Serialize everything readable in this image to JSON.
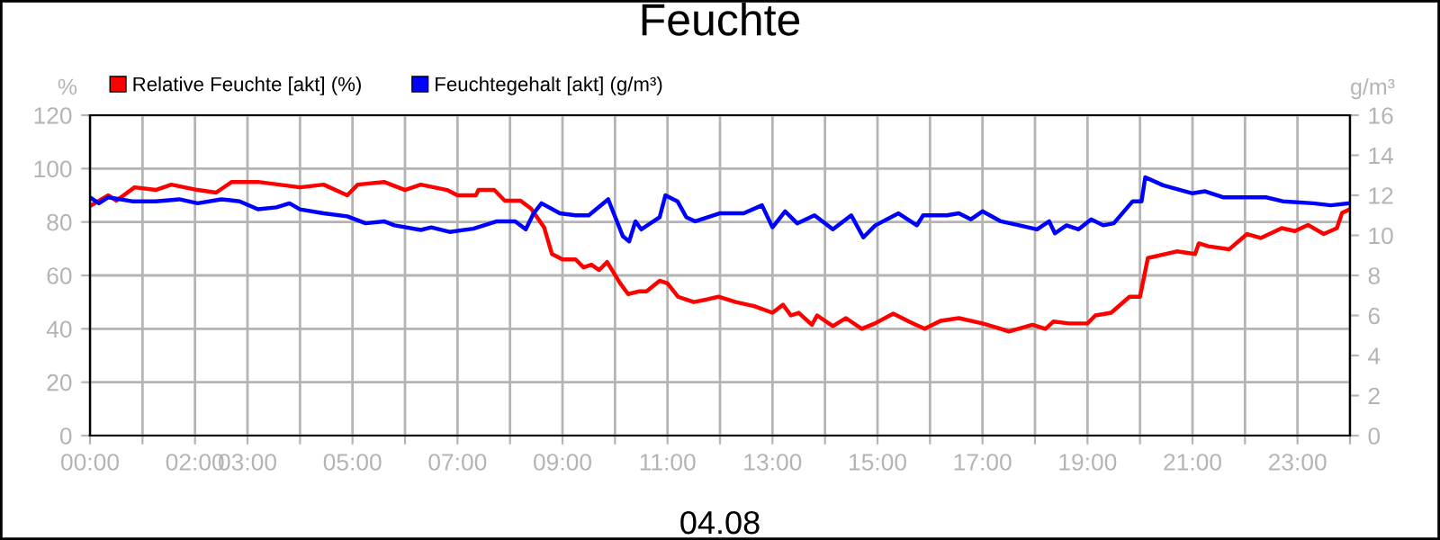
{
  "chart_data": {
    "type": "line",
    "title": "Feuchte",
    "xlabel": "04.08",
    "ylabel": "%",
    "y2label": "g/m³",
    "xlim": [
      0,
      24
    ],
    "xticks": [
      {
        "value": 0,
        "label": "00:00"
      },
      {
        "value": 1,
        "label": null
      },
      {
        "value": 2,
        "label": "02:00"
      },
      {
        "value": 3,
        "label": "03:00"
      },
      {
        "value": 4,
        "label": null
      },
      {
        "value": 5,
        "label": "05:00"
      },
      {
        "value": 6,
        "label": null
      },
      {
        "value": 7,
        "label": "07:00"
      },
      {
        "value": 8,
        "label": null
      },
      {
        "value": 9,
        "label": "09:00"
      },
      {
        "value": 10,
        "label": null
      },
      {
        "value": 11,
        "label": "11:00"
      },
      {
        "value": 12,
        "label": null
      },
      {
        "value": 13,
        "label": "13:00"
      },
      {
        "value": 14,
        "label": null
      },
      {
        "value": 15,
        "label": "15:00"
      },
      {
        "value": 16,
        "label": null
      },
      {
        "value": 17,
        "label": "17:00"
      },
      {
        "value": 18,
        "label": null
      },
      {
        "value": 19,
        "label": "19:00"
      },
      {
        "value": 20,
        "label": null
      },
      {
        "value": 21,
        "label": "21:00"
      },
      {
        "value": 22,
        "label": null
      },
      {
        "value": 23,
        "label": "23:00"
      },
      {
        "value": 24,
        "label": null
      }
    ],
    "ylim": [
      0,
      120
    ],
    "yticks": [
      0,
      20,
      40,
      60,
      80,
      100,
      120
    ],
    "y2lim": [
      0,
      16
    ],
    "y2ticks": [
      0,
      2,
      4,
      6,
      8,
      10,
      12,
      14,
      16
    ],
    "grid": true,
    "legend": "top left",
    "marker": "none",
    "line_style": "solid",
    "series": [
      {
        "name": "Relative Feuchte [akt] (%)",
        "color": "#ff0000",
        "x": [
          0,
          0.35,
          0.5,
          0.85,
          1.25,
          1.55,
          2.05,
          2.4,
          2.7,
          3.2,
          3.6,
          4.0,
          4.45,
          4.9,
          5.1,
          5.6,
          6.0,
          6.3,
          6.8,
          7.0,
          7.35,
          7.4,
          7.7,
          7.9,
          8.2,
          8.4,
          8.65,
          8.8,
          9.0,
          9.25,
          9.4,
          9.55,
          9.7,
          9.85,
          10.1,
          10.25,
          10.45,
          10.6,
          10.85,
          11.0,
          11.2,
          11.5,
          11.75,
          11.97,
          12.3,
          12.65,
          13.0,
          13.2,
          13.35,
          13.5,
          13.75,
          13.85,
          14.15,
          14.4,
          14.7,
          14.95,
          15.3,
          15.6,
          15.9,
          16.2,
          16.55,
          17.0,
          17.35,
          17.5,
          17.95,
          18.2,
          18.35,
          18.65,
          19.0,
          19.15,
          19.45,
          19.8,
          20.0,
          20.15,
          20.7,
          21.05,
          21.12,
          21.3,
          21.7,
          22.04,
          22.3,
          22.7,
          22.95,
          23.2,
          23.5,
          23.75,
          23.85,
          23.97
        ],
        "values": [
          86,
          90,
          88,
          93,
          92,
          94,
          92,
          91,
          95,
          95,
          94,
          93,
          94,
          90,
          94,
          95,
          92,
          94,
          92,
          90,
          90,
          92,
          92,
          88,
          88,
          85,
          78,
          68,
          66,
          66,
          63,
          64,
          62,
          65,
          57,
          53,
          54,
          54,
          58,
          57,
          52,
          50,
          51,
          52,
          50,
          48.5,
          46,
          49,
          45,
          46,
          41.5,
          45,
          41,
          44,
          40,
          42,
          45.7,
          42.7,
          40,
          43,
          44,
          42,
          40,
          39,
          41.5,
          40,
          42.7,
          42,
          42,
          45,
          46,
          52,
          52,
          66.5,
          69,
          68,
          72,
          70.9,
          69.8,
          75.5,
          74,
          77.7,
          76.6,
          78.9,
          75.5,
          77.7,
          83.4,
          84.5
        ]
      },
      {
        "name": "Feuchtegehalt [akt] (g/m³)",
        "color": "#0000ff",
        "axis": "y2",
        "x": [
          0,
          0.17,
          0.35,
          0.8,
          1.25,
          1.7,
          2.05,
          2.5,
          2.85,
          3.2,
          3.55,
          3.8,
          4.0,
          4.45,
          4.9,
          5.25,
          5.6,
          5.8,
          6.3,
          6.5,
          6.85,
          7.3,
          7.75,
          8.1,
          8.3,
          8.45,
          8.6,
          8.95,
          9.25,
          9.5,
          9.87,
          10.15,
          10.27,
          10.39,
          10.5,
          10.85,
          10.96,
          11.19,
          11.36,
          11.53,
          11.99,
          12.45,
          12.8,
          13.0,
          13.24,
          13.47,
          13.8,
          14.15,
          14.5,
          14.73,
          14.96,
          15.4,
          15.75,
          15.87,
          16.32,
          16.55,
          16.78,
          17.0,
          17.35,
          17.7,
          18.04,
          18.27,
          18.38,
          18.6,
          18.83,
          19.07,
          19.3,
          19.5,
          19.86,
          20.03,
          20.1,
          20.44,
          21.0,
          21.24,
          21.58,
          22.04,
          22.4,
          22.72,
          23.3,
          23.63,
          23.97
        ],
        "values": [
          11.9,
          11.6,
          11.9,
          11.7,
          11.7,
          11.8,
          11.6,
          11.8,
          11.7,
          11.3,
          11.4,
          11.6,
          11.3,
          11.1,
          10.95,
          10.6,
          10.7,
          10.5,
          10.27,
          10.4,
          10.17,
          10.33,
          10.7,
          10.7,
          10.3,
          11.1,
          11.6,
          11.1,
          11.0,
          11.0,
          11.8,
          9.95,
          9.7,
          10.7,
          10.3,
          10.9,
          12.0,
          11.7,
          10.9,
          10.7,
          11.1,
          11.1,
          11.5,
          10.4,
          11.2,
          10.6,
          11.0,
          10.3,
          11.0,
          9.9,
          10.5,
          11.1,
          10.5,
          11.0,
          11.0,
          11.1,
          10.8,
          11.2,
          10.7,
          10.5,
          10.3,
          10.7,
          10.1,
          10.5,
          10.3,
          10.8,
          10.5,
          10.6,
          11.7,
          11.7,
          12.9,
          12.5,
          12.1,
          12.2,
          11.9,
          11.9,
          11.9,
          11.7,
          11.6,
          11.5,
          11.6
        ]
      }
    ]
  }
}
